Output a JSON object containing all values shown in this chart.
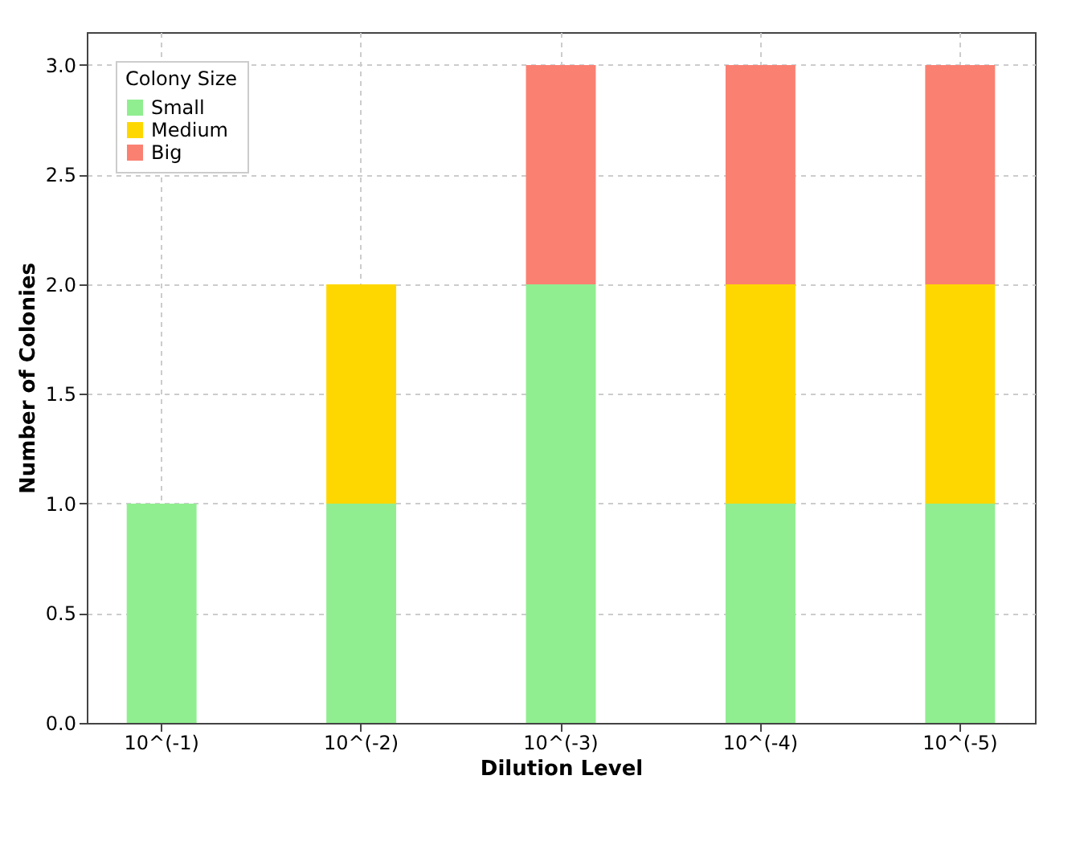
{
  "chart_data": {
    "type": "bar",
    "stacked": true,
    "xlabel": "Dilution Level",
    "ylabel": "Number of Colonies",
    "legend_title": "Colony Size",
    "legend": "top left",
    "grid": true,
    "categories": [
      "10^(-1)",
      "10^(-2)",
      "10^(-3)",
      "10^(-4)",
      "10^(-5)"
    ],
    "ylim": [
      0,
      3.15
    ],
    "yticks": [
      {
        "value": 0,
        "label": "0.0"
      },
      {
        "value": 0.5,
        "label": "0.5"
      },
      {
        "value": 1,
        "label": "1.0"
      },
      {
        "value": 1.5,
        "label": "1.5"
      },
      {
        "value": 2,
        "label": "2.0"
      },
      {
        "value": 2.5,
        "label": "2.5"
      },
      {
        "value": 3,
        "label": "3.0"
      }
    ],
    "series": [
      {
        "name": "Small",
        "color": "#90ee90",
        "values": [
          1,
          1,
          2,
          1,
          1
        ]
      },
      {
        "name": "Medium",
        "color": "#ffd700",
        "values": [
          null,
          1,
          null,
          1,
          1
        ]
      },
      {
        "name": "Big",
        "color": "#fa8072",
        "values": [
          null,
          null,
          1,
          1,
          1
        ]
      }
    ]
  }
}
